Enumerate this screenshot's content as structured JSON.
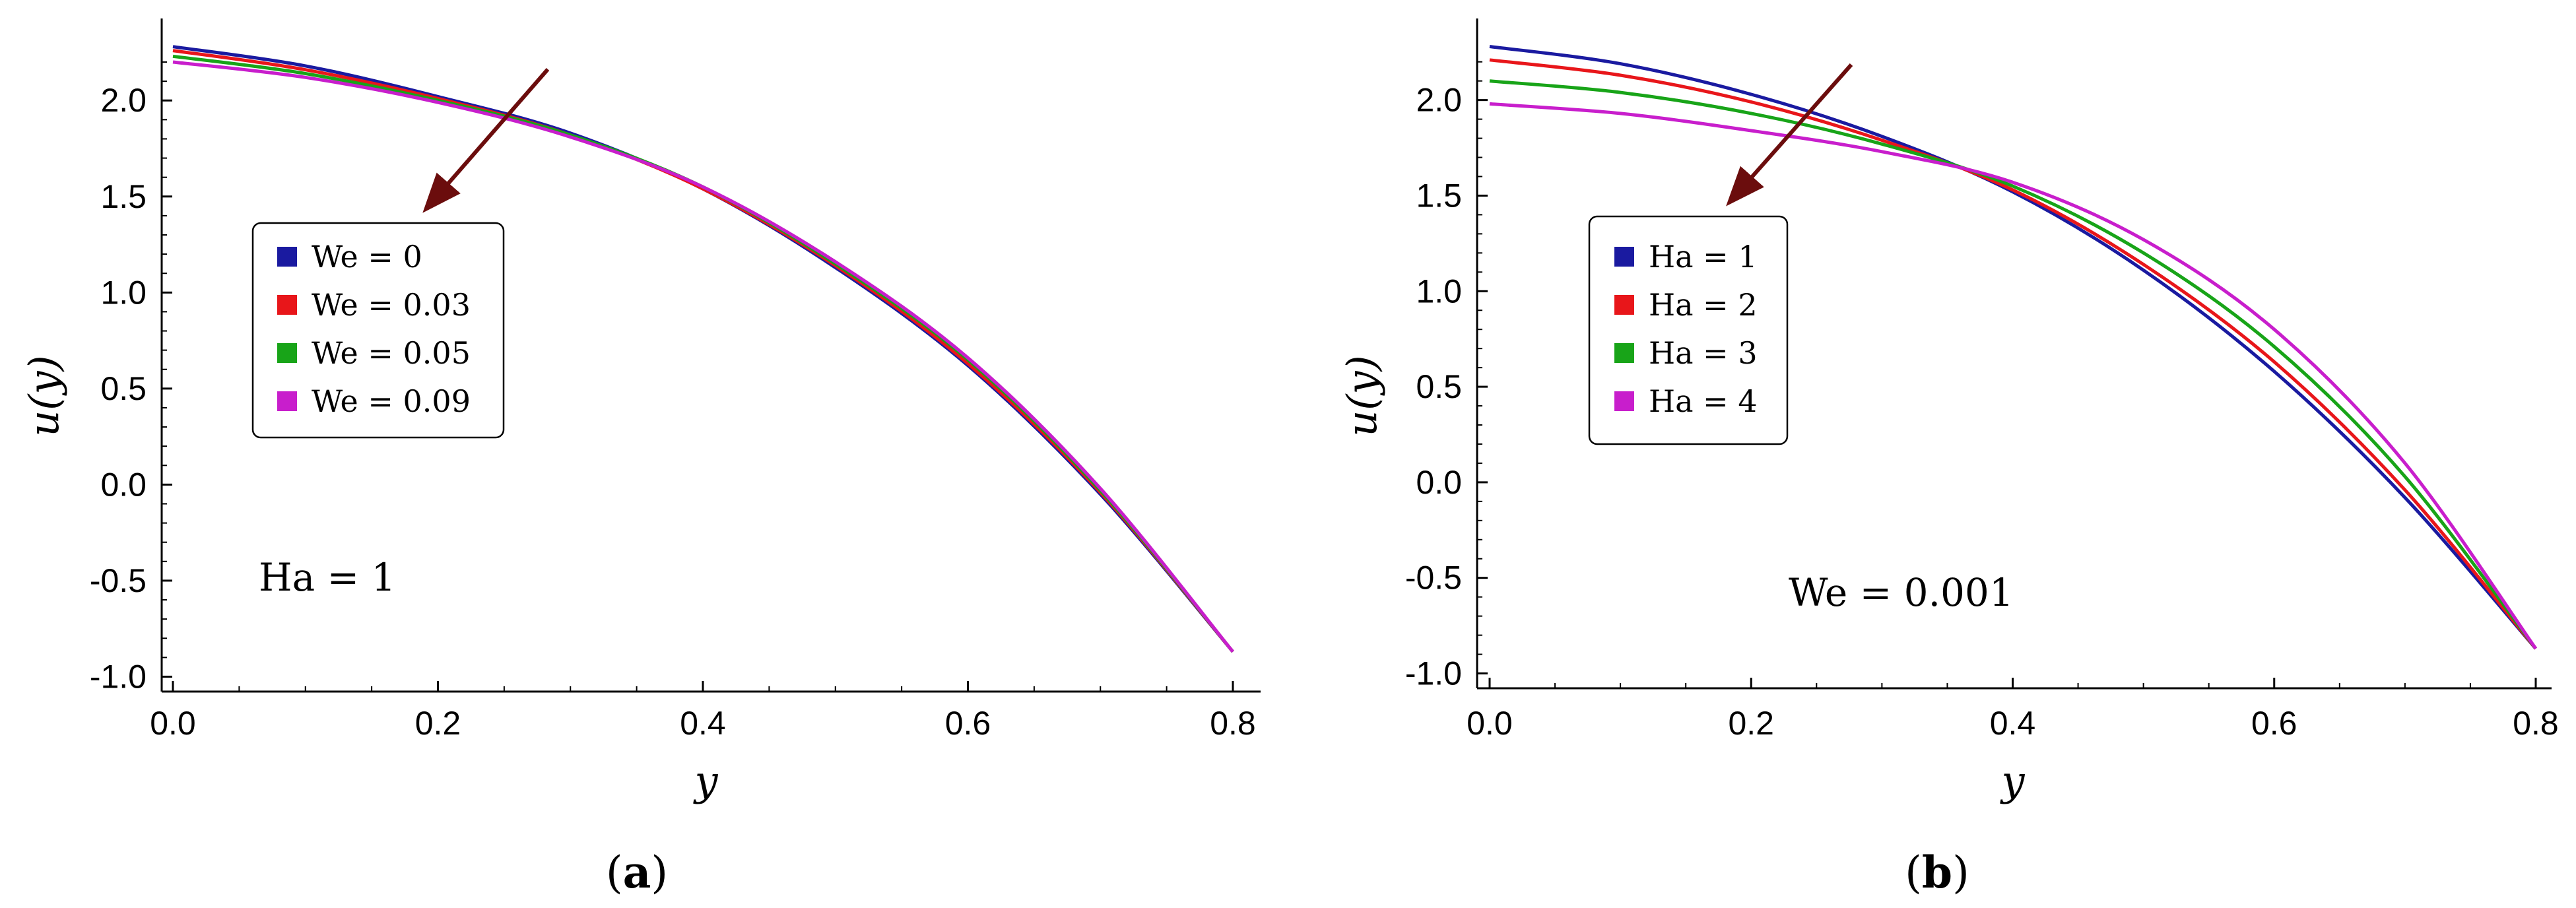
{
  "charts": [
    {
      "type": "line",
      "xlabel": "y",
      "ylabel": "u(y)",
      "xlim": [
        0,
        0.8
      ],
      "ylim": [
        -1.05,
        2.42
      ],
      "xticks": [
        "0.0",
        "0.2",
        "0.4",
        "0.6",
        "0.8"
      ],
      "yticks": [
        "-1.0",
        "-0.5",
        "0.0",
        "0.5",
        "1.0",
        "1.5",
        "2.0"
      ],
      "annotation": "Ha = 1",
      "caption_prefix": "(",
      "caption_letter": "a",
      "caption_suffix": ")",
      "legend": [
        "We = 0",
        "We = 0.03",
        "We = 0.05",
        "We = 0.09"
      ],
      "series": [
        {
          "name": "We = 0",
          "color": "#1a1aa0",
          "x": [
            0,
            0.1,
            0.2,
            0.3,
            0.4,
            0.5,
            0.6,
            0.7,
            0.8
          ],
          "y": [
            2.28,
            2.18,
            2.02,
            1.83,
            1.54,
            1.13,
            0.62,
            -0.05,
            -0.87
          ]
        },
        {
          "name": "We = 0.03",
          "color": "#e8161a",
          "x": [
            0,
            0.1,
            0.2,
            0.3,
            0.4,
            0.5,
            0.6,
            0.7,
            0.8
          ],
          "y": [
            2.26,
            2.16,
            2.01,
            1.82,
            1.54,
            1.14,
            0.63,
            -0.04,
            -0.87
          ]
        },
        {
          "name": "We = 0.05",
          "color": "#18a418",
          "x": [
            0,
            0.1,
            0.2,
            0.3,
            0.4,
            0.5,
            0.6,
            0.7,
            0.8
          ],
          "y": [
            2.23,
            2.14,
            2.0,
            1.82,
            1.55,
            1.15,
            0.65,
            -0.03,
            -0.87
          ]
        },
        {
          "name": "We = 0.09",
          "color": "#c81ecc",
          "x": [
            0,
            0.1,
            0.2,
            0.3,
            0.4,
            0.5,
            0.6,
            0.7,
            0.8
          ],
          "y": [
            2.2,
            2.12,
            1.99,
            1.81,
            1.55,
            1.16,
            0.66,
            -0.02,
            -0.87
          ]
        }
      ]
    },
    {
      "type": "line",
      "xlabel": "y",
      "ylabel": "u(y)",
      "xlim": [
        0,
        0.8
      ],
      "ylim": [
        -1.05,
        2.42
      ],
      "xticks": [
        "0.0",
        "0.2",
        "0.4",
        "0.6",
        "0.8"
      ],
      "yticks": [
        "-1.0",
        "-0.5",
        "0.0",
        "0.5",
        "1.0",
        "1.5",
        "2.0"
      ],
      "annotation": "We = 0.001",
      "caption_prefix": "(",
      "caption_letter": "b",
      "caption_suffix": ")",
      "legend": [
        "Ha = 1",
        "Ha = 2",
        "Ha = 3",
        "Ha = 4"
      ],
      "series": [
        {
          "name": "Ha = 1",
          "color": "#1a1aa0",
          "x": [
            0,
            0.1,
            0.2,
            0.3,
            0.4,
            0.5,
            0.6,
            0.7,
            0.8
          ],
          "y": [
            2.28,
            2.19,
            2.03,
            1.81,
            1.52,
            1.11,
            0.58,
            -0.08,
            -0.87
          ]
        },
        {
          "name": "Ha = 2",
          "color": "#e8161a",
          "x": [
            0,
            0.1,
            0.2,
            0.3,
            0.4,
            0.5,
            0.6,
            0.7,
            0.8
          ],
          "y": [
            2.21,
            2.13,
            1.99,
            1.79,
            1.53,
            1.14,
            0.63,
            -0.04,
            -0.87
          ]
        },
        {
          "name": "Ha = 3",
          "color": "#18a418",
          "x": [
            0,
            0.1,
            0.2,
            0.3,
            0.4,
            0.5,
            0.6,
            0.7,
            0.8
          ],
          "y": [
            2.1,
            2.04,
            1.93,
            1.77,
            1.55,
            1.2,
            0.71,
            0.03,
            -0.87
          ]
        },
        {
          "name": "Ha = 4",
          "color": "#c81ecc",
          "x": [
            0,
            0.1,
            0.2,
            0.3,
            0.4,
            0.5,
            0.6,
            0.7,
            0.8
          ],
          "y": [
            1.98,
            1.93,
            1.84,
            1.73,
            1.57,
            1.27,
            0.8,
            0.1,
            -0.87
          ]
        }
      ]
    }
  ]
}
